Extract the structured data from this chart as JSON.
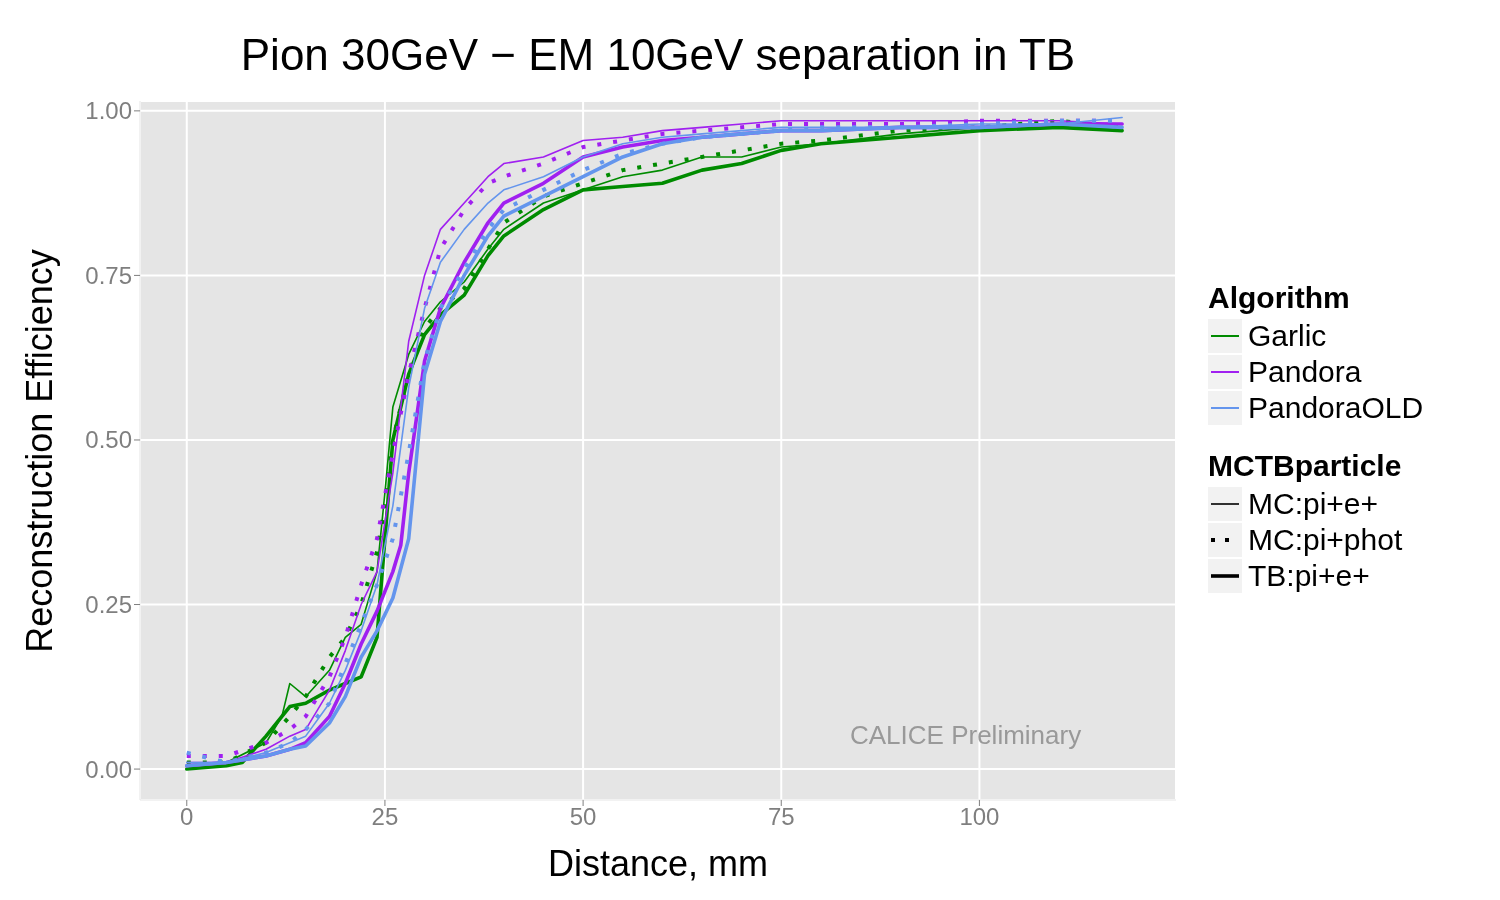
{
  "chart_data": {
    "type": "line",
    "title": "Pion 30GeV − EM 10GeV separation in TB",
    "xlabel": "Distance, mm",
    "ylabel": "Reconstruction Efficiency",
    "legend_title": "Algorithm",
    "legend": "right",
    "grid": true,
    "xlim": [
      -5.9,
      124.8
    ],
    "xticks": [
      0,
      25,
      50,
      75,
      100
    ],
    "ylim": [
      -0.047,
      1.015
    ],
    "yticks": [
      {
        "value": 0,
        "label": "0.00"
      },
      {
        "value": 0.25,
        "label": "0.25"
      },
      {
        "value": 0.5,
        "label": "0.50"
      },
      {
        "value": 0.75,
        "label": "0.75"
      },
      {
        "value": 1,
        "label": "1.00"
      }
    ],
    "annotations": [
      "MCTBparticle",
      "MC:pi+e+",
      "MC:pi+phot",
      "TB:pi+e+",
      "CALICE Preliminary"
    ],
    "series": [
      {
        "name": "Garlic",
        "color": "#008b00",
        "line_style": "solid",
        "x": [
          0,
          5,
          10,
          12,
          13,
          15,
          18,
          20,
          22,
          24,
          25,
          26,
          28,
          30,
          32,
          35,
          38,
          40,
          45,
          50,
          55,
          60,
          65,
          70,
          75,
          80,
          90,
          100,
          110,
          118
        ],
        "values": [
          0.005,
          0.01,
          0.04,
          0.08,
          0.13,
          0.11,
          0.15,
          0.2,
          0.22,
          0.3,
          0.42,
          0.55,
          0.63,
          0.68,
          0.71,
          0.74,
          0.79,
          0.82,
          0.86,
          0.88,
          0.9,
          0.91,
          0.93,
          0.93,
          0.945,
          0.95,
          0.965,
          0.975,
          0.98,
          0.97
        ]
      },
      {
        "color": "#008b00",
        "line_style": "dotted",
        "x": [
          0,
          5,
          10,
          13,
          15,
          18,
          20,
          22,
          24,
          25,
          26,
          28,
          30,
          32,
          35,
          38,
          40,
          45,
          50,
          55,
          60,
          65,
          70,
          75,
          80,
          90,
          100,
          110,
          118
        ],
        "values": [
          0.01,
          0.01,
          0.04,
          0.08,
          0.11,
          0.17,
          0.2,
          0.25,
          0.33,
          0.4,
          0.5,
          0.6,
          0.67,
          0.7,
          0.73,
          0.79,
          0.83,
          0.87,
          0.89,
          0.91,
          0.92,
          0.93,
          0.94,
          0.95,
          0.955,
          0.97,
          0.975,
          0.985,
          0.975
        ]
      },
      {
        "color": "#008b00",
        "line_style": "solid",
        "x": [
          0,
          5,
          7,
          10,
          13,
          15,
          18,
          20,
          22,
          24,
          25,
          26,
          28,
          30,
          32,
          35,
          38,
          40,
          45,
          50,
          55,
          60,
          65,
          70,
          75,
          80,
          90,
          100,
          110,
          118
        ],
        "values": [
          0,
          0.005,
          0.01,
          0.05,
          0.095,
          0.1,
          0.12,
          0.13,
          0.14,
          0.2,
          0.35,
          0.5,
          0.6,
          0.66,
          0.69,
          0.72,
          0.78,
          0.81,
          0.85,
          0.88,
          0.885,
          0.89,
          0.91,
          0.92,
          0.94,
          0.95,
          0.96,
          0.97,
          0.975,
          0.97
        ]
      },
      {
        "name": "Pandora",
        "color": "#a020f0",
        "line_style": "solid",
        "x": [
          0,
          5,
          10,
          13,
          15,
          18,
          20,
          22,
          24,
          26,
          28,
          30,
          32,
          35,
          38,
          40,
          45,
          50,
          55,
          60,
          65,
          70,
          75,
          80,
          90,
          100,
          110,
          118
        ],
        "values": [
          0.01,
          0.01,
          0.03,
          0.05,
          0.06,
          0.12,
          0.18,
          0.25,
          0.3,
          0.45,
          0.65,
          0.75,
          0.82,
          0.86,
          0.9,
          0.92,
          0.93,
          0.955,
          0.96,
          0.97,
          0.975,
          0.98,
          0.985,
          0.985,
          0.985,
          0.985,
          0.985,
          0.98
        ]
      },
      {
        "color": "#a020f0",
        "line_style": "dotted",
        "x": [
          0,
          5,
          10,
          13,
          15,
          18,
          20,
          22,
          24,
          26,
          28,
          30,
          32,
          35,
          38,
          40,
          45,
          50,
          55,
          60,
          65,
          70,
          75,
          80,
          90,
          100,
          110,
          118
        ],
        "values": [
          0.02,
          0.02,
          0.04,
          0.06,
          0.08,
          0.14,
          0.2,
          0.28,
          0.35,
          0.48,
          0.6,
          0.7,
          0.79,
          0.85,
          0.89,
          0.9,
          0.92,
          0.945,
          0.955,
          0.965,
          0.97,
          0.975,
          0.98,
          0.98,
          0.98,
          0.985,
          0.985,
          0.985
        ]
      },
      {
        "color": "#a020f0",
        "line_style": "solid",
        "x": [
          0,
          5,
          10,
          13,
          15,
          18,
          20,
          22,
          24,
          26,
          27,
          28,
          30,
          32,
          35,
          38,
          40,
          45,
          50,
          55,
          60,
          65,
          70,
          75,
          80,
          90,
          100,
          110,
          118
        ],
        "values": [
          0.005,
          0.01,
          0.02,
          0.03,
          0.04,
          0.08,
          0.13,
          0.19,
          0.24,
          0.3,
          0.34,
          0.45,
          0.62,
          0.7,
          0.77,
          0.83,
          0.86,
          0.89,
          0.93,
          0.945,
          0.955,
          0.96,
          0.965,
          0.97,
          0.97,
          0.975,
          0.975,
          0.98,
          0.98
        ]
      },
      {
        "name": "PandoraOLD",
        "color": "#6495ed",
        "line_style": "solid",
        "x": [
          0,
          5,
          10,
          13,
          15,
          18,
          20,
          22,
          24,
          26,
          28,
          30,
          32,
          35,
          38,
          40,
          45,
          50,
          55,
          60,
          65,
          70,
          75,
          80,
          90,
          100,
          110,
          118
        ],
        "values": [
          0.01,
          0.01,
          0.025,
          0.04,
          0.05,
          0.1,
          0.15,
          0.21,
          0.28,
          0.4,
          0.58,
          0.7,
          0.77,
          0.82,
          0.86,
          0.88,
          0.9,
          0.93,
          0.95,
          0.96,
          0.965,
          0.97,
          0.975,
          0.975,
          0.975,
          0.98,
          0.98,
          0.99
        ]
      },
      {
        "color": "#6495ed",
        "line_style": "dotted",
        "x": [
          0,
          5,
          10,
          13,
          15,
          18,
          20,
          22,
          24,
          26,
          28,
          30,
          32,
          35,
          38,
          40,
          45,
          50,
          55,
          60,
          65,
          70,
          75,
          80,
          90,
          100,
          110,
          118
        ],
        "values": [
          0.025,
          0.01,
          0.025,
          0.04,
          0.06,
          0.1,
          0.16,
          0.22,
          0.28,
          0.35,
          0.48,
          0.62,
          0.7,
          0.76,
          0.82,
          0.85,
          0.88,
          0.91,
          0.935,
          0.95,
          0.96,
          0.965,
          0.97,
          0.975,
          0.975,
          0.98,
          0.985,
          0.985
        ]
      },
      {
        "color": "#6495ed",
        "line_style": "solid",
        "x": [
          0,
          5,
          10,
          13,
          15,
          18,
          20,
          22,
          24,
          26,
          28,
          30,
          32,
          35,
          38,
          40,
          45,
          50,
          55,
          60,
          65,
          70,
          75,
          80,
          90,
          100,
          110,
          118
        ],
        "values": [
          0.005,
          0.01,
          0.02,
          0.03,
          0.035,
          0.07,
          0.11,
          0.17,
          0.21,
          0.26,
          0.35,
          0.6,
          0.68,
          0.75,
          0.81,
          0.84,
          0.87,
          0.9,
          0.93,
          0.95,
          0.96,
          0.965,
          0.97,
          0.97,
          0.975,
          0.975,
          0.98,
          0.975
        ]
      }
    ]
  }
}
